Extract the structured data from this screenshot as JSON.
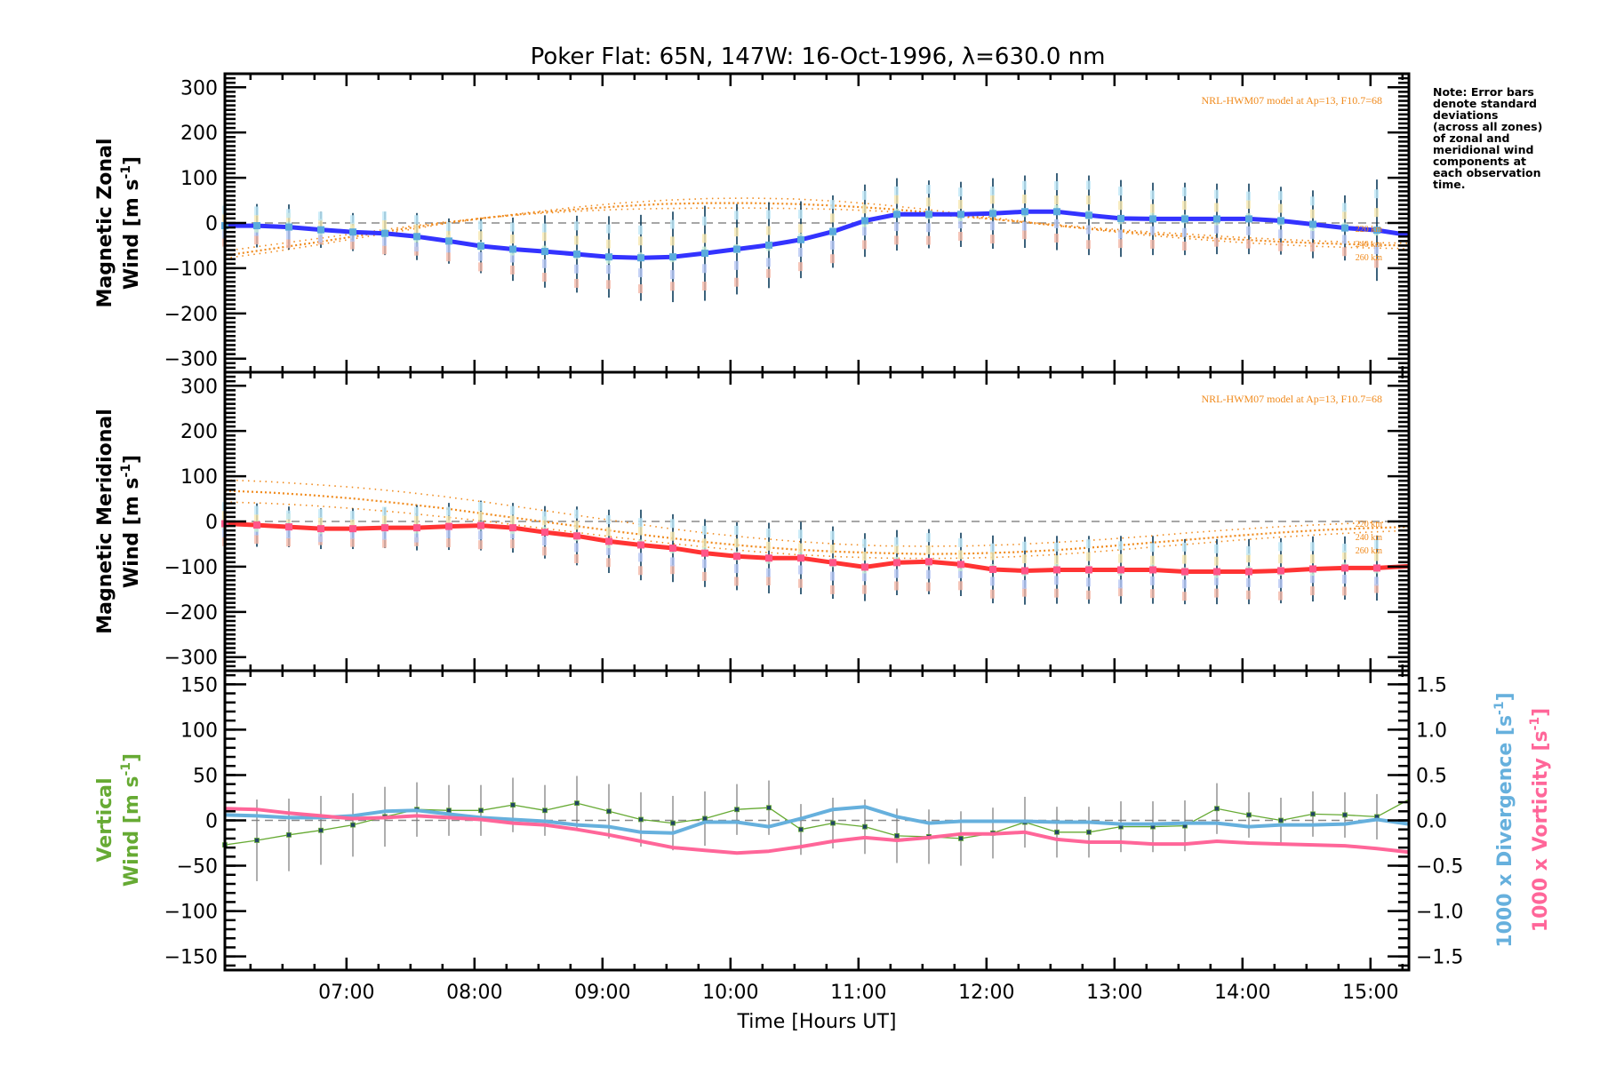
{
  "chart_data": [
    {
      "type": "line",
      "panel": "zonal",
      "title": "Poker Flat: 65N, 147W: 16-Oct-1996, λ=630.0 nm",
      "ylabel_line1": "Magnetic Zonal",
      "ylabel_line2": "Wind [m s",
      "ylabel_sup": "-1",
      "ylabel_end": "]",
      "ylim": [
        -330,
        330
      ],
      "yticks": [
        300,
        200,
        100,
        0,
        -100,
        -200,
        -300
      ],
      "ytick_labels": [
        "300",
        "200",
        "100",
        "0",
        "−100",
        "−200",
        "−300"
      ],
      "model_annotation": "NRL-HWM07 model at Ap=13, F10.7=68",
      "model_altitudes": [
        "220 km",
        "240 km",
        "260 km"
      ],
      "x_hours_start": 6.05,
      "x_step_hours": 0.25,
      "series": [
        {
          "name": "Magnetic Zonal Wind",
          "color": "#3333ff",
          "values": [
            -6,
            -6,
            -9,
            -15,
            -20,
            -23,
            -30,
            -40,
            -51,
            -58,
            -63,
            -69,
            -75,
            -77,
            -75,
            -67,
            -58,
            -49,
            -37,
            -19,
            5,
            19,
            19,
            19,
            21,
            25,
            25,
            17,
            10,
            9,
            9,
            9,
            9,
            5,
            -3,
            -11,
            -16
          ],
          "end_value": -27,
          "error": [
            45,
            48,
            50,
            40,
            42,
            48,
            52,
            50,
            60,
            70,
            80,
            85,
            90,
            95,
            100,
            105,
            100,
            95,
            85,
            80,
            80,
            80,
            75,
            72,
            78,
            80,
            85,
            88,
            85,
            80,
            80,
            78,
            78,
            75,
            75,
            72,
            112
          ]
        },
        {
          "name": "HWM07 220 km",
          "color": "#f08a1c",
          "style": "dotted",
          "values": [
            -78,
            -65,
            -50,
            -34,
            -18,
            -2,
            12,
            24,
            35,
            44,
            50,
            54,
            55,
            53,
            48,
            40,
            30,
            18,
            6,
            -6,
            -17,
            -27,
            -35,
            -42,
            -48,
            -52,
            -55,
            -57
          ]
        },
        {
          "name": "HWM07 240 km",
          "color": "#f08a1c",
          "style": "dotted",
          "values": [
            -72,
            -58,
            -44,
            -29,
            -14,
            0,
            12,
            22,
            30,
            37,
            42,
            44,
            44,
            42,
            38,
            32,
            24,
            14,
            4,
            -6,
            -15,
            -23,
            -30,
            -36,
            -41,
            -45,
            -48,
            -50
          ]
        },
        {
          "name": "HWM07 260 km",
          "color": "#f08a1c",
          "style": "dotted",
          "values": [
            -62,
            -49,
            -36,
            -23,
            -10,
            2,
            12,
            20,
            26,
            30,
            32,
            33,
            33,
            32,
            30,
            26,
            20,
            12,
            4,
            -4,
            -12,
            -19,
            -25,
            -31,
            -36,
            -40,
            -43,
            -45
          ]
        }
      ]
    },
    {
      "type": "line",
      "panel": "meridional",
      "ylabel_line1": "Magnetic Meridional",
      "ylabel_line2": "Wind [m s",
      "ylabel_sup": "-1",
      "ylabel_end": "]",
      "ylim": [
        -330,
        330
      ],
      "yticks": [
        300,
        200,
        100,
        0,
        -100,
        -200,
        -300
      ],
      "ytick_labels": [
        "300",
        "200",
        "100",
        "0",
        "−100",
        "−200",
        "−300"
      ],
      "model_annotation": "NRL-HWM07 model at Ap=13, F10.7=68",
      "model_altitudes": [
        "220 km",
        "240 km",
        "260 km"
      ],
      "x_hours_start": 6.05,
      "x_step_hours": 0.25,
      "series": [
        {
          "name": "Magnetic Meridional Wind",
          "color": "#ff3333",
          "values": [
            -5,
            -8,
            -12,
            -16,
            -16,
            -14,
            -14,
            -11,
            -9,
            -14,
            -24,
            -32,
            -44,
            -52,
            -59,
            -70,
            -77,
            -81,
            -81,
            -91,
            -101,
            -91,
            -89,
            -95,
            -106,
            -109,
            -107,
            -107,
            -107,
            -107,
            -111,
            -111,
            -111,
            -109,
            -105,
            -103,
            -103
          ],
          "end_value": -99,
          "error": [
            50,
            48,
            45,
            45,
            45,
            45,
            50,
            52,
            55,
            55,
            58,
            65,
            70,
            78,
            75,
            75,
            75,
            78,
            80,
            80,
            75,
            72,
            72,
            70,
            75,
            75,
            75,
            75,
            75,
            75,
            72,
            72,
            72,
            72,
            72,
            70,
            72
          ]
        },
        {
          "name": "HWM07 220 km",
          "color": "#f08a1c",
          "style": "dotted",
          "values": [
            92,
            88,
            82,
            75,
            66,
            55,
            42,
            28,
            14,
            0,
            -14,
            -26,
            -36,
            -44,
            -50,
            -54,
            -55,
            -54,
            -51,
            -46,
            -40,
            -33,
            -25,
            -18,
            -12,
            -7,
            -3,
            0
          ]
        },
        {
          "name": "HWM07 240 km",
          "color": "#f08a1c",
          "style": "dotted",
          "values": [
            68,
            64,
            58,
            50,
            40,
            29,
            16,
            3,
            -10,
            -23,
            -35,
            -46,
            -55,
            -62,
            -67,
            -70,
            -72,
            -71,
            -68,
            -63,
            -56,
            -48,
            -40,
            -32,
            -25,
            -19,
            -15,
            -12
          ]
        },
        {
          "name": "HWM07 260 km",
          "color": "#f08a1c",
          "style": "dotted",
          "values": [
            43,
            40,
            35,
            28,
            20,
            10,
            0,
            -12,
            -24,
            -36,
            -47,
            -57,
            -66,
            -73,
            -78,
            -81,
            -82,
            -81,
            -78,
            -73,
            -66,
            -58,
            -50,
            -42,
            -35,
            -29,
            -24,
            -20
          ]
        }
      ]
    },
    {
      "type": "line",
      "panel": "vertical",
      "ylabel_line1": "Vertical",
      "ylabel_line2": "Wind [m s",
      "ylabel_sup": "-1",
      "ylabel_end": "]",
      "ylabel_color": "#66aa33",
      "ylim": [
        -165,
        165
      ],
      "yticks": [
        150,
        100,
        50,
        0,
        -50,
        -100,
        -150
      ],
      "ytick_labels": [
        "150",
        "100",
        "50",
        "0",
        "−50",
        "−100",
        "−150"
      ],
      "y2lim": [
        -1.65,
        1.65
      ],
      "y2ticks": [
        1.5,
        1.0,
        0.5,
        0.0,
        -0.5,
        -1.0,
        -1.5
      ],
      "y2tick_labels": [
        "1.5",
        "1.0",
        "0.5",
        "0.0",
        "−0.5",
        "−1.0",
        "−1.5"
      ],
      "y2label_divergence": "1000 x Divergence [s",
      "y2label_vorticity": "1000 x Vorticity [s",
      "y2label_sup": "-1",
      "y2label_end": "]",
      "divergence_color": "#66b0dd",
      "vorticity_color": "#ff6699",
      "x_hours_start": 6.05,
      "x_step_hours": 0.25,
      "xlabel": "Time [Hours UT]",
      "xticks": [
        7,
        8,
        9,
        10,
        11,
        12,
        13,
        14,
        15
      ],
      "xtick_labels": [
        "07:00",
        "08:00",
        "09:00",
        "10:00",
        "11:00",
        "12:00",
        "13:00",
        "14:00",
        "15:00"
      ],
      "xlim_hours": [
        6.05,
        15.3
      ],
      "series": [
        {
          "name": "Vertical Wind",
          "axis": "left",
          "color": "#66aa33",
          "values": [
            -27,
            -22,
            -16,
            -11,
            -5,
            4,
            12,
            11,
            11,
            17,
            11,
            19,
            10,
            1,
            -3,
            2,
            12,
            14,
            -10,
            -3,
            -7,
            -17,
            -18,
            -20,
            -14,
            -2,
            -13,
            -13,
            -7,
            -7,
            -6,
            13,
            6,
            0,
            7,
            6,
            4
          ],
          "end_value": 23,
          "error": [
            50,
            45,
            40,
            38,
            35,
            33,
            30,
            28,
            28,
            30,
            28,
            30,
            30,
            30,
            30,
            30,
            28,
            30,
            28,
            28,
            30,
            30,
            30,
            30,
            28,
            28,
            28,
            28,
            28,
            28,
            28,
            28,
            25,
            25,
            25,
            25,
            25
          ]
        },
        {
          "name": "1000 x Divergence",
          "axis": "right",
          "color": "#66b0dd",
          "values": [
            0.06,
            0.05,
            0.03,
            0.03,
            0.05,
            0.1,
            0.11,
            0.07,
            0.03,
            0.01,
            -0.01,
            -0.05,
            -0.07,
            -0.13,
            -0.14,
            -0.02,
            -0.02,
            -0.07,
            0.02,
            0.12,
            0.15,
            0.04,
            -0.03,
            -0.01,
            -0.01,
            -0.01,
            -0.02,
            -0.02,
            -0.04,
            -0.04,
            -0.03,
            -0.03,
            -0.07,
            -0.05,
            -0.05,
            -0.04,
            0.01
          ],
          "end_value": -0.04
        },
        {
          "name": "1000 x Vorticity",
          "axis": "right",
          "color": "#ff6699",
          "values": [
            0.13,
            0.12,
            0.08,
            0.05,
            0.02,
            0.03,
            0.05,
            0.03,
            0.01,
            -0.03,
            -0.05,
            -0.1,
            -0.16,
            -0.23,
            -0.3,
            -0.33,
            -0.36,
            -0.34,
            -0.29,
            -0.23,
            -0.19,
            -0.22,
            -0.19,
            -0.15,
            -0.15,
            -0.13,
            -0.21,
            -0.24,
            -0.24,
            -0.26,
            -0.26,
            -0.23,
            -0.25,
            -0.26,
            -0.27,
            -0.28,
            -0.31
          ],
          "end_value": -0.35
        }
      ]
    }
  ],
  "note": [
    "Note: Error bars",
    "denote standard",
    "deviations",
    "(across all zones)",
    "of zonal and",
    "meridional wind",
    "components at",
    "each observation",
    "time."
  ]
}
